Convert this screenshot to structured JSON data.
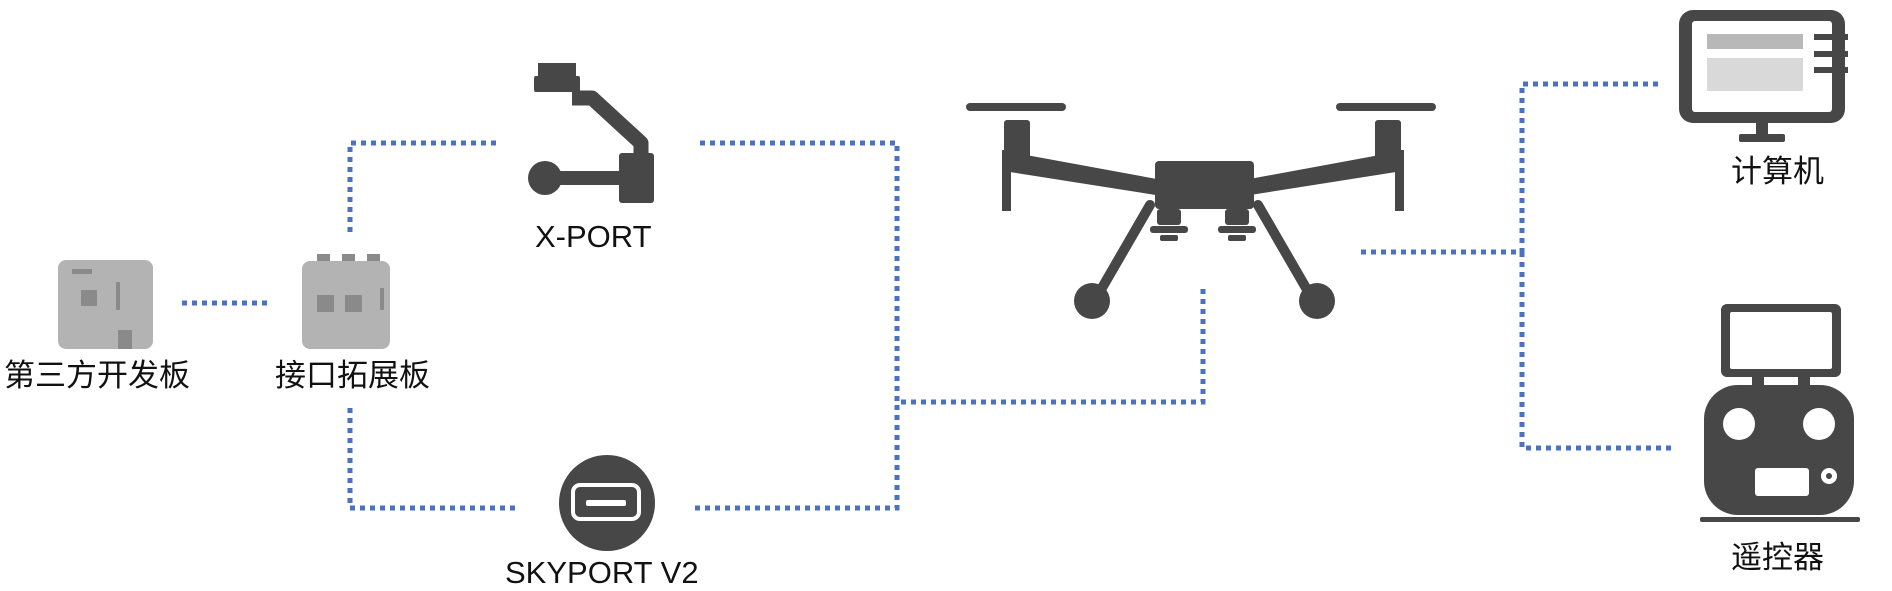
{
  "colors": {
    "connector": "#4a72c0",
    "device_dark": "#474747",
    "board_gray": "#b3b3b3",
    "board_dark": "#8a8a8a",
    "screen_bar": "#b8b8b8",
    "screen_fill": "#d9d9d9",
    "background": "#ffffff"
  },
  "nodes": {
    "third_party_board": {
      "label": "第三方开发板",
      "icon": "dev-board-icon"
    },
    "expansion_board": {
      "label": "接口拓展板",
      "icon": "expansion-board-icon"
    },
    "xport": {
      "label": "X-PORT",
      "icon": "gimbal-icon"
    },
    "skyport": {
      "label": "SKYPORT V2",
      "icon": "skyport-connector-icon"
    },
    "drone": {
      "label": "",
      "icon": "drone-icon"
    },
    "computer": {
      "label": "计算机",
      "icon": "monitor-icon"
    },
    "remote": {
      "label": "遥控器",
      "icon": "remote-controller-icon"
    }
  },
  "edges": [
    {
      "from": "third_party_board",
      "to": "expansion_board"
    },
    {
      "from": "expansion_board",
      "to": "xport"
    },
    {
      "from": "expansion_board",
      "to": "skyport"
    },
    {
      "from": "xport",
      "to": "drone"
    },
    {
      "from": "skyport",
      "to": "drone"
    },
    {
      "from": "drone",
      "to": "computer"
    },
    {
      "from": "drone",
      "to": "remote"
    }
  ]
}
